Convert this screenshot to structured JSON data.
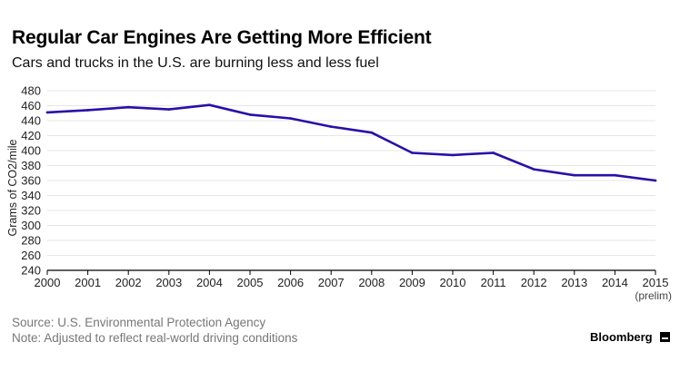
{
  "title": "Regular Car Engines Are Getting More Efficient",
  "subtitle": "Cars and trucks in the U.S. are burning less and less fuel",
  "source": "Source: U.S. Environmental Protection Agency",
  "note": "Note: Adjusted to reflect real-world driving conditions",
  "brand": "Bloomberg",
  "colors": {
    "line": "#2a0fa8",
    "grid": "#e6e6e6",
    "axis": "#000000",
    "muted": "#777777"
  },
  "chart_data": {
    "type": "line",
    "title": "Regular Car Engines Are Getting More Efficient",
    "subtitle": "Cars and trucks in the U.S. are burning less and less fuel",
    "xlabel": "",
    "ylabel": "Grams of CO2/mile",
    "x": [
      2000,
      2001,
      2002,
      2003,
      2004,
      2005,
      2006,
      2007,
      2008,
      2009,
      2010,
      2011,
      2012,
      2013,
      2014,
      2015
    ],
    "x_tick_labels": [
      "2000",
      "2001",
      "2002",
      "2003",
      "2004",
      "2005",
      "2006",
      "2007",
      "2008",
      "2009",
      "2010",
      "2011",
      "2012",
      "2013",
      "2014",
      "2015"
    ],
    "x_tick_sublabel": {
      "2015": "(prelim)"
    },
    "series": [
      {
        "values": [
          451,
          454,
          458,
          455,
          461,
          448,
          443,
          432,
          424,
          397,
          394,
          397,
          375,
          367,
          367,
          360
        ]
      }
    ],
    "ylim": [
      240,
      480
    ],
    "yticks": [
      240,
      260,
      280,
      300,
      320,
      340,
      360,
      380,
      400,
      420,
      440,
      460,
      480
    ],
    "grid": true,
    "legend": "none"
  }
}
